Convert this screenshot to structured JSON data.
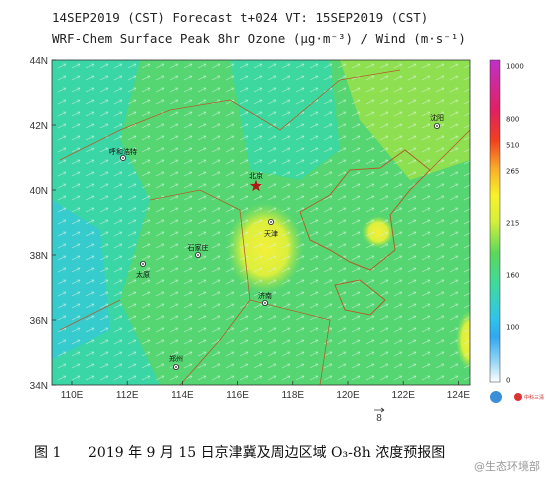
{
  "header": {
    "lines": [
      "14SEP2019 (CST) Forecast t+024 VT: 15SEP2019 (CST)",
      "WRF-Chem Surface Peak 8hr Ozone (μg·m⁻³) / Wind (m·s⁻¹)"
    ]
  },
  "map": {
    "lat_labels": [
      "44N",
      "42N",
      "40N",
      "38N",
      "36N",
      "34N"
    ],
    "lon_labels": [
      "110E",
      "112E",
      "114E",
      "116E",
      "118E",
      "120E",
      "122E",
      "124E"
    ],
    "cities": [
      {
        "label": "呼和浩特",
        "kind": "dot"
      },
      {
        "label": "北京",
        "kind": "star"
      },
      {
        "label": "天津",
        "kind": "dot"
      },
      {
        "label": "石家庄",
        "kind": "dot"
      },
      {
        "label": "太原",
        "kind": "dot"
      },
      {
        "label": "济南",
        "kind": "dot"
      },
      {
        "label": "郑州",
        "kind": "dot"
      },
      {
        "label": "沈阳",
        "kind": "dot"
      }
    ],
    "wind_ref": "8"
  },
  "colorbar": {
    "labels": [
      "1000",
      "800",
      "510",
      "265",
      "215",
      "160",
      "100",
      "0"
    ]
  },
  "logo": "中科三清",
  "caption": {
    "number": "图 1",
    "text": "2019 年 9 月 15 日京津冀及周边区域 O₃-8h 浓度预报图"
  },
  "watermark": "@生态环境部"
}
